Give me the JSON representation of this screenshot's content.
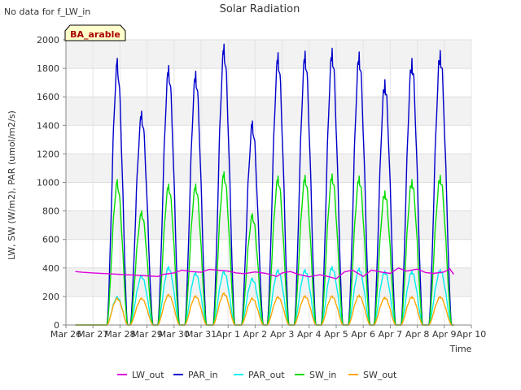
{
  "notice": "No data for f_LW_in",
  "badge": "BA_arable",
  "chart_data": {
    "type": "line",
    "title": "Solar Radiation",
    "xlabel": "Time",
    "ylabel": "LW, SW (W/m2), PAR (umol/m2/s)",
    "ylim": [
      0,
      2000
    ],
    "yticks": [
      0,
      200,
      400,
      600,
      800,
      1000,
      1200,
      1400,
      1600,
      1800,
      2000
    ],
    "xlim": [
      0,
      15
    ],
    "xticks": [
      {
        "x": 0,
        "label": "Mar 26"
      },
      {
        "x": 1,
        "label": "Mar 27"
      },
      {
        "x": 2,
        "label": "Mar 28"
      },
      {
        "x": 3,
        "label": "Mar 29"
      },
      {
        "x": 4,
        "label": "Mar 30"
      },
      {
        "x": 5,
        "label": "Mar 31"
      },
      {
        "x": 6,
        "label": "Apr 1"
      },
      {
        "x": 7,
        "label": "Apr 2"
      },
      {
        "x": 8,
        "label": "Apr 3"
      },
      {
        "x": 9,
        "label": "Apr 4"
      },
      {
        "x": 10,
        "label": "Apr 5"
      },
      {
        "x": 11,
        "label": "Apr 6"
      },
      {
        "x": 12,
        "label": "Apr 7"
      },
      {
        "x": 13,
        "label": "Apr 8"
      },
      {
        "x": 14,
        "label": "Apr 9"
      },
      {
        "x": 15,
        "label": "Apr 10"
      }
    ],
    "grid": true,
    "banded_background": true,
    "legend": "bottom",
    "data_start": 0.35,
    "data_end": 14.35,
    "series": [
      {
        "name": "LW_out",
        "color": "#dd00dd",
        "points": [
          [
            0.35,
            375
          ],
          [
            0.6,
            370
          ],
          [
            1.0,
            365
          ],
          [
            1.5,
            360
          ],
          [
            2.0,
            355
          ],
          [
            2.5,
            350
          ],
          [
            3.0,
            345
          ],
          [
            3.4,
            340
          ],
          [
            3.6,
            355
          ],
          [
            4.0,
            365
          ],
          [
            4.3,
            385
          ],
          [
            4.6,
            375
          ],
          [
            5.0,
            370
          ],
          [
            5.3,
            390
          ],
          [
            5.6,
            385
          ],
          [
            6.0,
            378
          ],
          [
            6.3,
            365
          ],
          [
            6.6,
            360
          ],
          [
            7.0,
            372
          ],
          [
            7.4,
            362
          ],
          [
            7.8,
            340
          ],
          [
            8.0,
            365
          ],
          [
            8.3,
            375
          ],
          [
            8.6,
            355
          ],
          [
            9.0,
            338
          ],
          [
            9.4,
            352
          ],
          [
            9.7,
            340
          ],
          [
            10.0,
            325
          ],
          [
            10.3,
            372
          ],
          [
            10.6,
            385
          ],
          [
            11.0,
            340
          ],
          [
            11.3,
            385
          ],
          [
            11.7,
            370
          ],
          [
            12.0,
            362
          ],
          [
            12.3,
            400
          ],
          [
            12.6,
            378
          ],
          [
            13.0,
            392
          ],
          [
            13.3,
            368
          ],
          [
            13.6,
            362
          ],
          [
            14.0,
            372
          ],
          [
            14.2,
            395
          ],
          [
            14.35,
            355
          ]
        ]
      },
      {
        "name": "PAR_in",
        "color": "#0000cc",
        "days": [
          [
            1.9,
            1870,
            0.38
          ],
          [
            2.8,
            1500,
            0.42
          ],
          [
            3.8,
            1820,
            0.4
          ],
          [
            4.8,
            1780,
            0.4
          ],
          [
            5.85,
            1970,
            0.4
          ],
          [
            6.9,
            1430,
            0.4
          ],
          [
            7.85,
            1910,
            0.4
          ],
          [
            8.85,
            1920,
            0.4
          ],
          [
            9.85,
            1940,
            0.4
          ],
          [
            10.85,
            1915,
            0.4
          ],
          [
            11.8,
            1720,
            0.4
          ],
          [
            12.8,
            1870,
            0.4
          ],
          [
            13.85,
            1925,
            0.42
          ]
        ]
      },
      {
        "name": "PAR_out",
        "color": "#00eeee",
        "days": [
          [
            1.9,
            200,
            0.38
          ],
          [
            2.8,
            350,
            0.42
          ],
          [
            3.8,
            410,
            0.4
          ],
          [
            4.8,
            370,
            0.4
          ],
          [
            5.85,
            380,
            0.4
          ],
          [
            6.9,
            330,
            0.4
          ],
          [
            7.85,
            390,
            0.4
          ],
          [
            8.85,
            390,
            0.4
          ],
          [
            9.85,
            410,
            0.4
          ],
          [
            10.85,
            400,
            0.4
          ],
          [
            11.8,
            380,
            0.4
          ],
          [
            12.8,
            380,
            0.4
          ],
          [
            13.85,
            390,
            0.42
          ]
        ]
      },
      {
        "name": "SW_in",
        "color": "#00dd00",
        "days": [
          [
            1.9,
            1020,
            0.38
          ],
          [
            2.8,
            800,
            0.42
          ],
          [
            3.8,
            990,
            0.4
          ],
          [
            4.8,
            990,
            0.4
          ],
          [
            5.85,
            1075,
            0.4
          ],
          [
            6.9,
            780,
            0.4
          ],
          [
            7.85,
            1045,
            0.4
          ],
          [
            8.85,
            1050,
            0.4
          ],
          [
            9.85,
            1060,
            0.4
          ],
          [
            10.85,
            1045,
            0.4
          ],
          [
            11.8,
            940,
            0.4
          ],
          [
            12.8,
            1020,
            0.4
          ],
          [
            13.85,
            1050,
            0.42
          ]
        ]
      },
      {
        "name": "SW_out",
        "color": "#ffa500",
        "days": [
          [
            1.9,
            190,
            0.38
          ],
          [
            2.8,
            190,
            0.42
          ],
          [
            3.8,
            215,
            0.4
          ],
          [
            4.8,
            205,
            0.4
          ],
          [
            5.85,
            225,
            0.4
          ],
          [
            6.9,
            190,
            0.4
          ],
          [
            7.85,
            200,
            0.4
          ],
          [
            8.85,
            205,
            0.4
          ],
          [
            9.85,
            205,
            0.4
          ],
          [
            10.85,
            210,
            0.4
          ],
          [
            11.8,
            195,
            0.4
          ],
          [
            12.8,
            200,
            0.4
          ],
          [
            13.85,
            200,
            0.42
          ]
        ]
      }
    ]
  }
}
